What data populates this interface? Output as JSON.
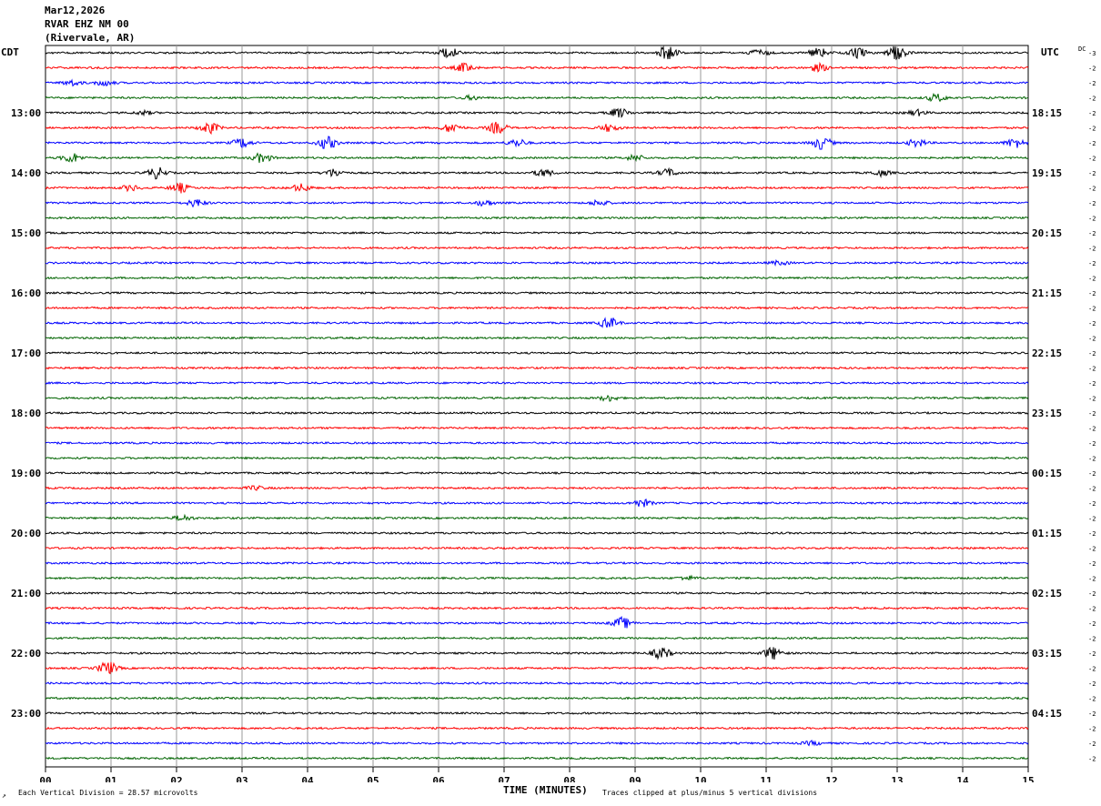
{
  "header": {
    "date": "Mar12,2026",
    "station": "RVAR EHZ NM 00",
    "location": "(Rivervale, AR)"
  },
  "chart_data": {
    "type": "line",
    "title": "",
    "xlabel": "TIME (MINUTES)",
    "ylabel": "",
    "left_timezone": "CDT",
    "right_timezone": "UTC",
    "dc_label": "DC",
    "x_ticks": [
      "00",
      "01",
      "02",
      "03",
      "04",
      "05",
      "06",
      "07",
      "08",
      "09",
      "10",
      "11",
      "12",
      "13",
      "14",
      "15"
    ],
    "xlim": [
      0,
      15
    ],
    "left_hour_labels": [
      "13:00",
      "14:00",
      "15:00",
      "16:00",
      "17:00",
      "18:00",
      "19:00",
      "20:00",
      "21:00",
      "22:00",
      "23:00"
    ],
    "right_hour_labels": [
      "18:15",
      "19:15",
      "20:15",
      "21:15",
      "22:15",
      "23:15",
      "00:15",
      "01:15",
      "02:15",
      "03:15",
      "04:15"
    ],
    "dc_offsets": [
      "-3",
      "-2",
      "-2",
      "-2",
      "-2",
      "-2",
      "-2",
      "-2",
      "-2",
      "-2",
      "-2",
      "-2",
      "-2",
      "-2",
      "-2",
      "-2",
      "-2",
      "-2",
      "-2",
      "-2",
      "-2",
      "-2",
      "-2",
      "-2",
      "-2",
      "-2",
      "-2",
      "-2",
      "-2",
      "-2",
      "-2",
      "-2",
      "-2",
      "-2",
      "-2",
      "-2",
      "-2",
      "-2",
      "-2",
      "-2",
      "-2",
      "-2",
      "-2",
      "-2",
      "-2",
      "-2",
      "-2",
      "-2"
    ],
    "trace_colors": [
      "#000000",
      "#ff0000",
      "#0000ff",
      "#006400"
    ],
    "trace_count": 48,
    "traces_per_hour": 4,
    "scale_note": "Each Vertical Division =   28.57 microvolts",
    "clip_note": "Traces clipped at plus/minus 5 vertical divisions",
    "events": [
      {
        "trace": 0,
        "minute": 6.15,
        "amp": 6
      },
      {
        "trace": 0,
        "minute": 9.5,
        "amp": 8
      },
      {
        "trace": 0,
        "minute": 10.9,
        "amp": 4
      },
      {
        "trace": 0,
        "minute": 11.8,
        "amp": 5
      },
      {
        "trace": 0,
        "minute": 12.4,
        "amp": 5
      },
      {
        "trace": 0,
        "minute": 13.0,
        "amp": 8
      },
      {
        "trace": 1,
        "minute": 6.4,
        "amp": 5
      },
      {
        "trace": 1,
        "minute": 11.8,
        "amp": 4
      },
      {
        "trace": 2,
        "minute": 0.4,
        "amp": 3
      },
      {
        "trace": 2,
        "minute": 0.9,
        "amp": 3
      },
      {
        "trace": 3,
        "minute": 6.5,
        "amp": 2
      },
      {
        "trace": 3,
        "minute": 13.6,
        "amp": 4
      },
      {
        "trace": 4,
        "minute": 1.5,
        "amp": 2
      },
      {
        "trace": 4,
        "minute": 8.75,
        "amp": 5
      },
      {
        "trace": 4,
        "minute": 13.3,
        "amp": 3
      },
      {
        "trace": 5,
        "minute": 2.5,
        "amp": 6
      },
      {
        "trace": 5,
        "minute": 6.2,
        "amp": 5
      },
      {
        "trace": 5,
        "minute": 6.9,
        "amp": 6
      },
      {
        "trace": 5,
        "minute": 8.6,
        "amp": 4
      },
      {
        "trace": 6,
        "minute": 3.0,
        "amp": 5
      },
      {
        "trace": 6,
        "minute": 4.3,
        "amp": 7
      },
      {
        "trace": 6,
        "minute": 7.2,
        "amp": 4
      },
      {
        "trace": 6,
        "minute": 11.85,
        "amp": 7
      },
      {
        "trace": 6,
        "minute": 13.3,
        "amp": 4
      },
      {
        "trace": 6,
        "minute": 14.8,
        "amp": 5
      },
      {
        "trace": 7,
        "minute": 0.4,
        "amp": 5
      },
      {
        "trace": 7,
        "minute": 3.3,
        "amp": 5
      },
      {
        "trace": 7,
        "minute": 9.0,
        "amp": 3
      },
      {
        "trace": 8,
        "minute": 1.7,
        "amp": 6
      },
      {
        "trace": 8,
        "minute": 4.4,
        "amp": 4
      },
      {
        "trace": 8,
        "minute": 7.6,
        "amp": 4
      },
      {
        "trace": 8,
        "minute": 9.5,
        "amp": 4
      },
      {
        "trace": 8,
        "minute": 12.75,
        "amp": 3
      },
      {
        "trace": 9,
        "minute": 1.3,
        "amp": 3
      },
      {
        "trace": 9,
        "minute": 2.05,
        "amp": 5
      },
      {
        "trace": 9,
        "minute": 3.9,
        "amp": 4
      },
      {
        "trace": 10,
        "minute": 2.3,
        "amp": 4
      },
      {
        "trace": 10,
        "minute": 6.7,
        "amp": 3
      },
      {
        "trace": 10,
        "minute": 8.45,
        "amp": 3
      },
      {
        "trace": 14,
        "minute": 11.2,
        "amp": 2
      },
      {
        "trace": 18,
        "minute": 8.6,
        "amp": 6
      },
      {
        "trace": 23,
        "minute": 8.6,
        "amp": 3
      },
      {
        "trace": 29,
        "minute": 3.2,
        "amp": 2
      },
      {
        "trace": 30,
        "minute": 9.1,
        "amp": 4
      },
      {
        "trace": 31,
        "minute": 2.1,
        "amp": 3
      },
      {
        "trace": 35,
        "minute": 9.8,
        "amp": 2
      },
      {
        "trace": 38,
        "minute": 8.8,
        "amp": 6
      },
      {
        "trace": 40,
        "minute": 9.4,
        "amp": 6
      },
      {
        "trace": 40,
        "minute": 11.1,
        "amp": 7
      },
      {
        "trace": 41,
        "minute": 0.95,
        "amp": 7
      },
      {
        "trace": 46,
        "minute": 11.7,
        "amp": 2
      }
    ]
  }
}
